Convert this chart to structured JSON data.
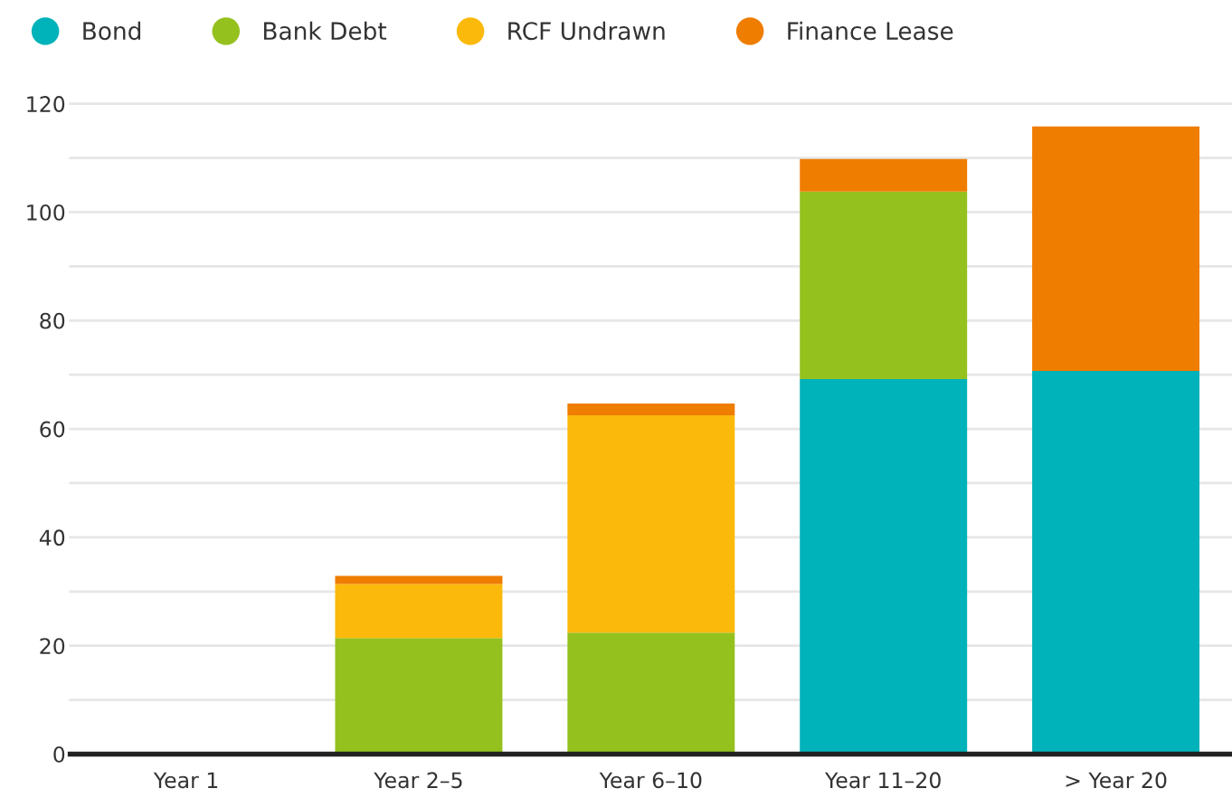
{
  "chart_data": {
    "type": "bar",
    "stacked": true,
    "categories": [
      "Year 1",
      "Year 2–5",
      "Year 6–10",
      "Year 11–20",
      "> Year 20"
    ],
    "series": [
      {
        "name": "Bond",
        "color": "#00b2b9",
        "values": [
          0,
          0,
          0,
          69.2,
          70.7
        ]
      },
      {
        "name": "Bank Debt",
        "color": "#95c11f",
        "values": [
          0,
          21.4,
          22.4,
          34.6,
          0
        ]
      },
      {
        "name": "RCF Undrawn",
        "color": "#fbb90c",
        "values": [
          0,
          10.0,
          40.1,
          0,
          0
        ]
      },
      {
        "name": "Finance Lease",
        "color": "#ef7d00",
        "values": [
          0,
          1.5,
          2.2,
          6.0,
          45.1
        ]
      }
    ],
    "ylim": [
      0,
      120
    ],
    "yticks": [
      0,
      {
        "value": 10,
        "label": null
      },
      20,
      {
        "value": 30,
        "label": null
      },
      40,
      {
        "value": 50,
        "label": null
      },
      60,
      {
        "value": 70,
        "label": null
      },
      80,
      {
        "value": 90,
        "label": null
      },
      100,
      {
        "value": 110,
        "label": null
      },
      120
    ],
    "grid": "y",
    "legend": "top left"
  }
}
